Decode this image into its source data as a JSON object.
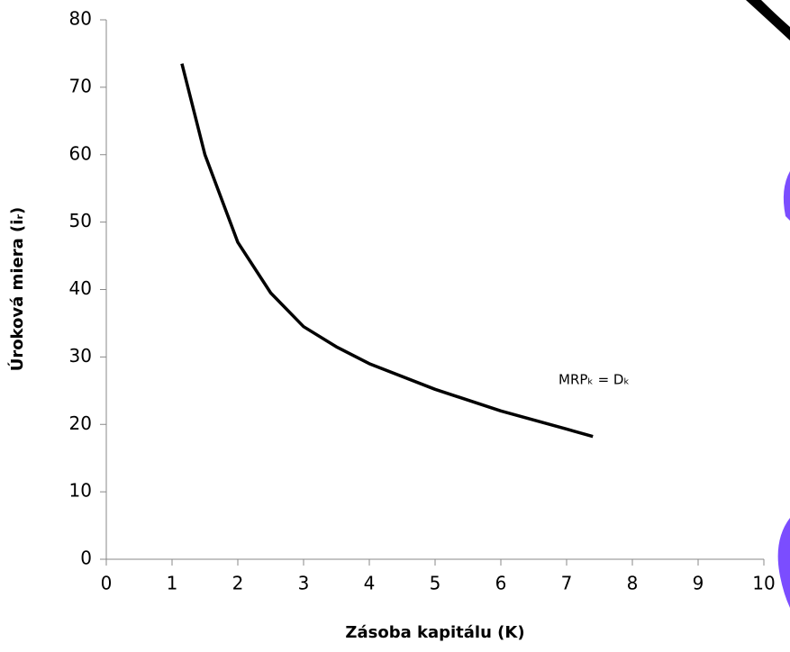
{
  "chart_data": {
    "type": "line",
    "xlabel": "Zásoba kapitálu (K)",
    "ylabel": "Úroková miera (iᵣ)",
    "annotation": "MRPₖ = Dₖ",
    "x": [
      1.15,
      1.5,
      2,
      2.5,
      3,
      3.5,
      4,
      5,
      6,
      7,
      7.4
    ],
    "series": [
      {
        "color": "#000000",
        "values": [
          73.5,
          60,
          47,
          39.5,
          34.5,
          31.5,
          29,
          25.2,
          22,
          19.3,
          18.2
        ]
      }
    ],
    "xlim": [
      0,
      10
    ],
    "xticks": [
      0,
      1,
      2,
      3,
      4,
      5,
      6,
      7,
      8,
      9,
      10
    ],
    "ylim": [
      0,
      80
    ],
    "yticks": [
      0,
      10,
      20,
      30,
      40,
      50,
      60,
      70,
      80
    ],
    "grid": false
  }
}
